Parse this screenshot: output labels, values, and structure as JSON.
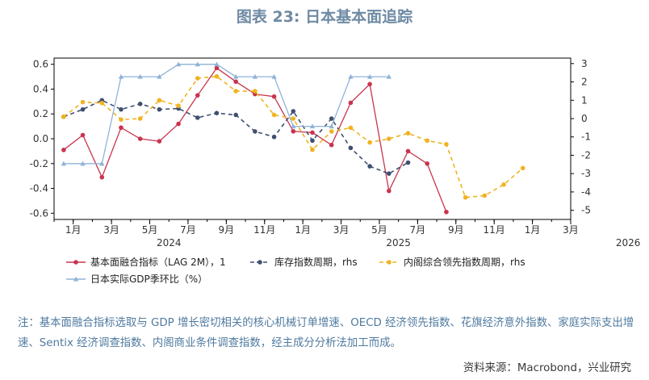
{
  "title": "图表 23: 日本基本面追踪",
  "note": "注：基本面融合指标选取与 GDP 增长密切相关的核心机械订单增速、OECD 经济领先指数、花旗经济意外指数、家庭实际支出增速、Sentix 经济调查指数、内阁商业条件调查指数，经主成分分析法加工而成。",
  "source": "资料来源：Macrobond，兴业研究",
  "colors": {
    "fundamental": "#c8344e",
    "inventory": "#3f5070",
    "cabinet": "#f0b321",
    "gdp": "#8fb3d8"
  },
  "chart_data": {
    "type": "line",
    "x_tick_labels": [
      "1月",
      "3月",
      "5月",
      "7月",
      "9月",
      "11月",
      "1月",
      "3月",
      "5月",
      "7月",
      "9月",
      "11月",
      "1月",
      "3月"
    ],
    "year_labels": [
      {
        "label": "2024",
        "month_index": 5
      },
      {
        "label": "2025",
        "month_index": 17
      },
      {
        "label": "2026",
        "month_index": 29
      }
    ],
    "x_range_month_index": [
      -1,
      26
    ],
    "left_axis": {
      "ylim": [
        -0.65,
        0.65
      ],
      "ticks": [
        0.6,
        0.4,
        0.2,
        0.0,
        -0.2,
        -0.4,
        -0.6
      ],
      "tick_labels": [
        "0.6",
        "0.4",
        "0.2",
        "0.0",
        "-0.2",
        "-0.4",
        "-0.6"
      ]
    },
    "right_axis": {
      "ylim": [
        -5.5,
        3.3
      ],
      "ticks": [
        3,
        2,
        1,
        0,
        -1,
        -2,
        -3,
        -4,
        -5
      ],
      "tick_labels": [
        "3",
        "2",
        "1",
        "0",
        "-1",
        "-2",
        "-3",
        "-4",
        "-5"
      ]
    },
    "series": [
      {
        "name": "基本面融合指标（LAG 2M），1",
        "axis": "left",
        "style": "solid-dot",
        "x": [
          -0.5,
          0.5,
          1.5,
          2.5,
          3.5,
          4.5,
          5.5,
          6.5,
          7.5,
          8.5,
          9.5,
          10.5,
          11.5,
          12.5,
          13.5,
          14.5,
          15.5,
          16.5,
          17.5,
          18.5,
          19.5
        ],
        "values": [
          -0.09,
          0.03,
          -0.31,
          0.09,
          0.0,
          -0.02,
          0.12,
          0.35,
          0.57,
          0.46,
          0.36,
          0.34,
          0.06,
          0.05,
          -0.05,
          0.29,
          0.44,
          -0.42,
          -0.1,
          -0.2,
          -0.59
        ]
      },
      {
        "name": "库存指数周期，rhs",
        "axis": "right",
        "style": "dash-dot",
        "x": [
          -0.5,
          0.5,
          1.5,
          2.5,
          3.5,
          4.5,
          5.5,
          6.5,
          7.5,
          8.5,
          9.5,
          10.5,
          11.5,
          12.5,
          13.5,
          14.5,
          15.5,
          16.5,
          17.5
        ],
        "values": [
          0.1,
          0.5,
          1.0,
          0.5,
          0.8,
          0.5,
          0.55,
          0.05,
          0.3,
          0.2,
          -0.7,
          -1.0,
          0.4,
          -1.2,
          0.0,
          -1.6,
          -2.6,
          -3.0,
          -2.4
        ]
      },
      {
        "name": "内阁综合领先指数周期，rhs",
        "axis": "right",
        "style": "dash-dot",
        "x": [
          -0.5,
          0.5,
          1.5,
          2.5,
          3.5,
          4.5,
          5.5,
          6.5,
          7.5,
          8.5,
          9.5,
          10.5,
          11.5,
          12.5,
          13.5,
          14.5,
          15.5,
          16.5,
          17.5,
          18.5,
          19.5,
          20.5,
          21.5,
          22.5,
          23.5
        ],
        "values": [
          0.1,
          0.9,
          0.85,
          -0.05,
          0.0,
          1.0,
          0.7,
          2.2,
          2.3,
          1.5,
          1.5,
          0.2,
          0.0,
          -1.7,
          -0.7,
          -0.5,
          -1.3,
          -1.1,
          -0.8,
          -1.2,
          -1.4,
          -4.3,
          -4.2,
          -3.6,
          -2.7
        ]
      },
      {
        "name": "日本实际GDP季环比（%）",
        "axis": "left",
        "style": "triangle",
        "x": [
          -0.5,
          0.5,
          1.5,
          2.5,
          3.5,
          4.5,
          5.5,
          6.5,
          7.5,
          8.5,
          9.5,
          10.5,
          11.5,
          12.5,
          13.5,
          14.5,
          15.5,
          16.5
        ],
        "values": [
          -0.2,
          -0.2,
          -0.2,
          0.5,
          0.5,
          0.5,
          0.6,
          0.6,
          0.6,
          0.5,
          0.5,
          0.5,
          0.1,
          0.1,
          0.1,
          0.5,
          0.5,
          0.5
        ]
      }
    ],
    "legend": [
      {
        "label": "基本面融合指标（LAG 2M），1",
        "series_index": 0
      },
      {
        "label": "库存指数周期，rhs",
        "series_index": 1
      },
      {
        "label": "内阁综合领先指数周期，rhs",
        "series_index": 2
      },
      {
        "label": "日本实际GDP季环比（%）",
        "series_index": 3
      }
    ]
  }
}
